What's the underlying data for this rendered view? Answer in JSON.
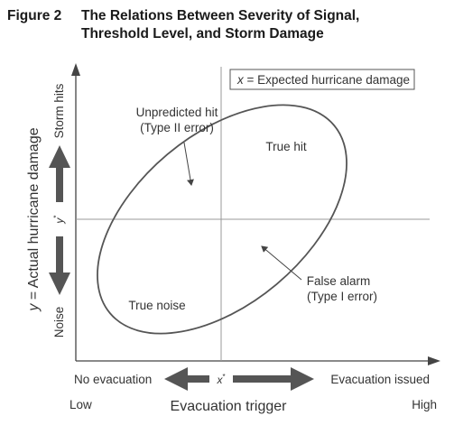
{
  "figure": {
    "label": "Figure 2",
    "title_line1": "The Relations Between Severity of Signal,",
    "title_line2": "Threshold Level, and Storm Damage"
  },
  "legend": {
    "var": "x",
    "text": " = Expected hurricane damage"
  },
  "y_axis": {
    "label_var": "y",
    "label_text": " = Actual hurricane damage",
    "top_label": "Storm hits",
    "bottom_label": "Noise",
    "threshold_var": "y",
    "threshold_sup": "*"
  },
  "x_axis": {
    "left_label": "No evacuation",
    "right_label": "Evacuation issued",
    "threshold_var": "x",
    "threshold_sup": "*",
    "low_label": "Low",
    "high_label": "High",
    "title": "Evacuation trigger"
  },
  "quadrants": {
    "unpredicted_hit_1": "Unpredicted hit",
    "unpredicted_hit_2": "(Type II error)",
    "true_hit": "True hit",
    "false_alarm_1": "False alarm",
    "false_alarm_2": "(Type I error)",
    "true_noise": "True noise"
  },
  "colors": {
    "ink": "#333333",
    "thin_line": "#999999",
    "arrow_fill": "#555555"
  }
}
